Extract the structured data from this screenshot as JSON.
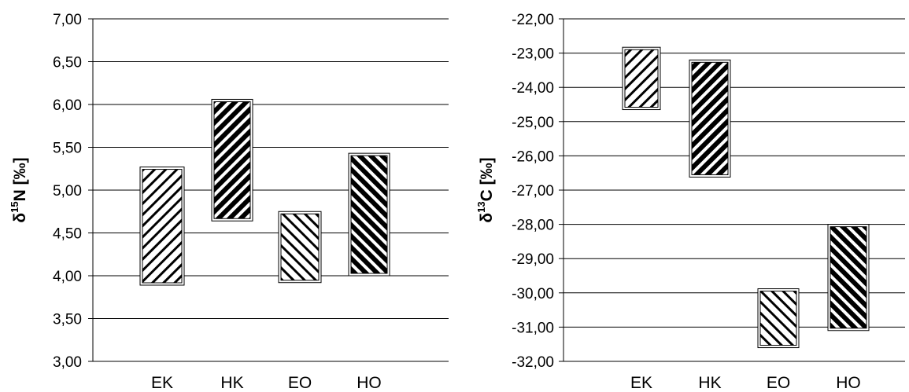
{
  "chart_data": [
    {
      "type": "floating-bar",
      "ylabel": {
        "prefix": "δ",
        "sup": "15",
        "main": "N [‰]"
      },
      "ylim": [
        3.0,
        7.0
      ],
      "yticks": [
        "3,00",
        "3,50",
        "4,00",
        "4,50",
        "5,00",
        "5,50",
        "6,00",
        "6,50",
        "7,00"
      ],
      "ytick_values": [
        3.0,
        3.5,
        4.0,
        4.5,
        5.0,
        5.5,
        6.0,
        6.5,
        7.0
      ],
      "grid": true,
      "categories": [
        "EK",
        "HK",
        "EO",
        "HO"
      ],
      "ranges": [
        {
          "low": 3.89,
          "high": 5.27
        },
        {
          "low": 4.64,
          "high": 6.06
        },
        {
          "low": 3.92,
          "high": 4.75
        },
        {
          "low": 4.0,
          "high": 5.43
        }
      ]
    },
    {
      "type": "floating-bar",
      "ylabel": {
        "prefix": "δ",
        "sup": "13",
        "main": "C [‰]"
      },
      "ylim": [
        -32.0,
        -22.0
      ],
      "yticks": [
        "-32,00",
        "-31,00",
        "-30,00",
        "-29,00",
        "-28,00",
        "-27,00",
        "-26,00",
        "-25,00",
        "-24,00",
        "-23,00",
        "-22,00"
      ],
      "ytick_values": [
        -32,
        -31,
        -30,
        -29,
        -28,
        -27,
        -26,
        -25,
        -24,
        -23,
        -22
      ],
      "grid": true,
      "categories": [
        "EK",
        "HK",
        "EO",
        "HO"
      ],
      "ranges": [
        {
          "low": -24.65,
          "high": -22.83
        },
        {
          "low": -26.62,
          "high": -23.2
        },
        {
          "low": -31.6,
          "high": -29.88
        },
        {
          "low": -31.1,
          "high": -28.0
        }
      ]
    }
  ],
  "pattern_colors": {
    "light": "#000000",
    "dark": "#000000",
    "background": "#ffffff"
  }
}
